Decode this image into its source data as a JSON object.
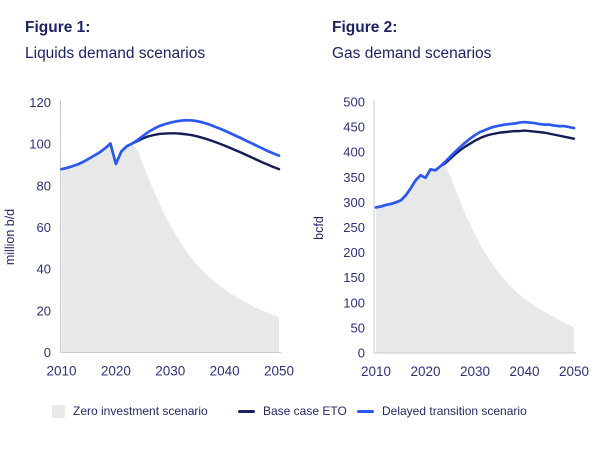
{
  "figures": [
    {
      "title_bold": "Figure 1:",
      "subtitle": "Liquids demand scenarios"
    },
    {
      "title_bold": "Figure 2:",
      "subtitle": "Gas demand scenarios"
    }
  ],
  "colors": {
    "title_text": "#1D2365",
    "tick_text": "#2B317B",
    "axis_line": "#C7CBD0",
    "zero_investment_fill": "#E6E8EA",
    "base_case_line": "#161C55",
    "delayed_transition_line": "#2B58F0"
  },
  "legend": {
    "items": [
      {
        "label": "Zero investment scenario",
        "marker": "square",
        "color": "#E6E8EA"
      },
      {
        "label": "Base case ETO",
        "marker": "dash",
        "color": "#1B2160"
      },
      {
        "label": "Delayed transition scenario",
        "marker": "dash",
        "color": "#2B58F0"
      }
    ]
  },
  "chart_data": [
    {
      "type": "area",
      "title": "Figure 1: Liquids demand scenarios",
      "xlabel": "",
      "ylabel": "million b/d",
      "ylim": [
        0,
        120
      ],
      "yticks": [
        0,
        20,
        40,
        60,
        80,
        100,
        120
      ],
      "xticks": [
        2010,
        2020,
        2030,
        2040,
        2050
      ],
      "grid": false,
      "legend_position": "bottom",
      "x": [
        2010,
        2011,
        2012,
        2013,
        2014,
        2015,
        2016,
        2017,
        2018,
        2019,
        2020,
        2021,
        2022,
        2023,
        2024,
        2025,
        2026,
        2027,
        2028,
        2029,
        2030,
        2031,
        2032,
        2033,
        2034,
        2035,
        2036,
        2037,
        2038,
        2039,
        2040,
        2041,
        2042,
        2043,
        2044,
        2045,
        2046,
        2047,
        2048,
        2049,
        2050
      ],
      "series": [
        {
          "name": "Zero investment scenario",
          "type": "area",
          "color": "#E6E8EA",
          "values": [
            87,
            87.7,
            88.5,
            89.5,
            90.8,
            92.3,
            93.8,
            95.3,
            97.3,
            99.5,
            90,
            95.8,
            98.3,
            99.8,
            97,
            90,
            83.5,
            77.5,
            71.5,
            66,
            61,
            56.5,
            52.5,
            48.5,
            45,
            42,
            39.2,
            36.7,
            34.4,
            32.3,
            30.3,
            28.5,
            26.8,
            25.2,
            23.8,
            22.5,
            21.2,
            20,
            18.9,
            17.9,
            17
          ]
        },
        {
          "name": "Base case ETO",
          "type": "line",
          "color": "#161C55",
          "values": [
            88,
            88.6,
            89.4,
            90.3,
            91.5,
            93,
            94.5,
            96,
            98,
            100.3,
            90.5,
            96.5,
            99,
            100.3,
            101.5,
            102.8,
            103.8,
            104.4,
            104.9,
            105.1,
            105.2,
            105.2,
            105,
            104.7,
            104.3,
            103.7,
            103,
            102.2,
            101.3,
            100.3,
            99.3,
            98.2,
            97.1,
            96,
            94.8,
            93.6,
            92.4,
            91.2,
            90.1,
            89,
            88
          ]
        },
        {
          "name": "Delayed transition scenario",
          "type": "line",
          "color": "#2B58F0",
          "values": [
            88,
            88.6,
            89.4,
            90.3,
            91.5,
            93,
            94.5,
            96,
            98,
            100.3,
            90.5,
            96.5,
            99,
            100.3,
            102,
            104,
            105.9,
            107.4,
            108.7,
            109.6,
            110.3,
            110.9,
            111.3,
            111.5,
            111.4,
            111,
            110.4,
            109.6,
            108.6,
            107.6,
            106.5,
            105.3,
            104.1,
            102.9,
            101.6,
            100.4,
            99.1,
            97.9,
            96.6,
            95.5,
            94.5
          ]
        }
      ]
    },
    {
      "type": "area",
      "title": "Figure 2: Gas demand scenarios",
      "xlabel": "",
      "ylabel": "bcfd",
      "ylim": [
        0,
        500
      ],
      "yticks": [
        0,
        50,
        100,
        150,
        200,
        250,
        300,
        350,
        400,
        450,
        500
      ],
      "xticks": [
        2010,
        2020,
        2030,
        2040,
        2050
      ],
      "grid": false,
      "legend_position": "bottom",
      "x": [
        2010,
        2011,
        2012,
        2013,
        2014,
        2015,
        2016,
        2017,
        2018,
        2019,
        2020,
        2021,
        2022,
        2023,
        2024,
        2025,
        2026,
        2027,
        2028,
        2029,
        2030,
        2031,
        2032,
        2033,
        2034,
        2035,
        2036,
        2037,
        2038,
        2039,
        2040,
        2041,
        2042,
        2043,
        2044,
        2045,
        2046,
        2047,
        2048,
        2049,
        2050
      ],
      "series": [
        {
          "name": "Zero investment scenario",
          "type": "area",
          "color": "#E6E8EA",
          "values": [
            287,
            289,
            292,
            294,
            297,
            301,
            311,
            325,
            341,
            351,
            346,
            363,
            361,
            369,
            373,
            352,
            327,
            302,
            278,
            256,
            236,
            217,
            200,
            184,
            170,
            157,
            146,
            135,
            125,
            116,
            108,
            101,
            94,
            88,
            82,
            77,
            72,
            66,
            61,
            56,
            51
          ]
        },
        {
          "name": "Base case ETO",
          "type": "line",
          "color": "#161C55",
          "values": [
            290,
            292,
            295,
            297,
            300,
            304,
            314,
            328,
            344,
            354,
            349,
            366,
            364,
            372,
            378,
            387,
            396,
            404,
            411,
            417,
            423,
            428,
            432,
            435,
            437,
            439,
            440,
            441,
            442,
            442,
            443,
            442,
            441,
            440,
            439,
            437,
            435,
            433,
            431,
            429,
            427
          ]
        },
        {
          "name": "Delayed transition scenario",
          "type": "line",
          "color": "#2B58F0",
          "values": [
            290,
            292,
            295,
            297,
            300,
            304,
            314,
            328,
            344,
            354,
            349,
            366,
            364,
            372,
            381,
            391,
            401,
            410,
            419,
            427,
            434,
            440,
            444,
            448,
            451,
            453,
            455,
            456,
            457,
            459,
            460,
            459,
            458,
            456,
            455,
            455,
            453,
            452,
            452,
            450,
            448
          ]
        }
      ]
    }
  ]
}
